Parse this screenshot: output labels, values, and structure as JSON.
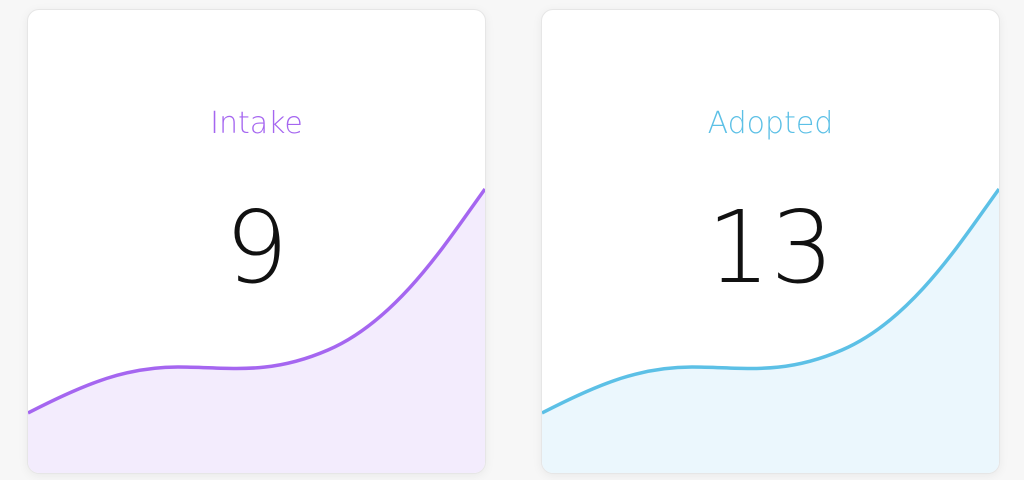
{
  "cards": [
    {
      "label": "Intake",
      "value": 9
    },
    {
      "label": "Adopted",
      "value": 13
    }
  ]
}
